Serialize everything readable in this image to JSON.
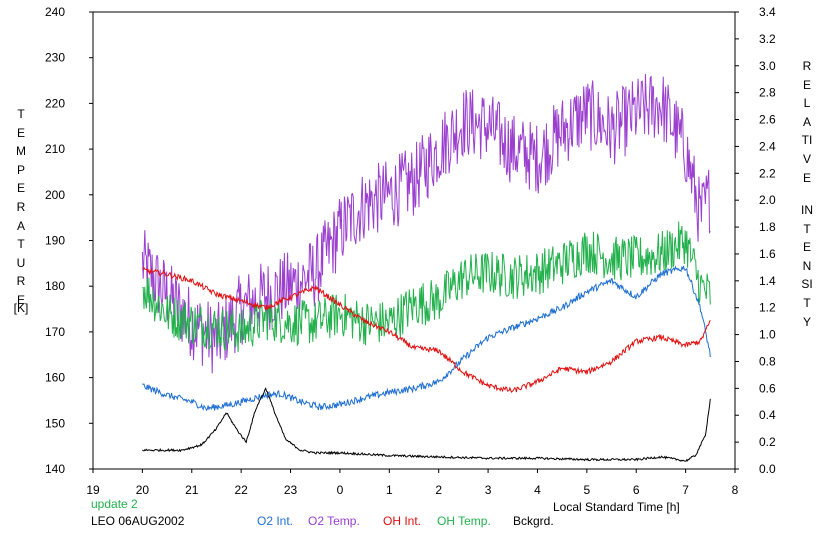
{
  "chart_data": {
    "type": "line",
    "xlabel": "Local Standard Time [h]",
    "x_tick_labels": [
      "19",
      "20",
      "21",
      "22",
      "23",
      "0",
      "1",
      "2",
      "3",
      "4",
      "5",
      "6",
      "7",
      "8"
    ],
    "y_left_label": "TEMPERATURE",
    "y_left_unit": "[K]",
    "y_left_ticks": [
      140,
      150,
      160,
      170,
      180,
      190,
      200,
      210,
      220,
      230,
      240
    ],
    "ylim_left": [
      140,
      240
    ],
    "y_right_label": "RELATIVE INTENSITY",
    "y_right_ticks": [
      "0.0",
      "0.2",
      "0.4",
      "0.6",
      "0.8",
      "1.0",
      "1.2",
      "1.4",
      "1.6",
      "1.8",
      "2.0",
      "2.2",
      "2.4",
      "2.6",
      "2.8",
      "3.0",
      "3.2",
      "3.4"
    ],
    "ylim_right": [
      0,
      3.4
    ],
    "xlim": [
      19,
      32
    ],
    "grid": false,
    "legend_placement": "bottom",
    "series": [
      {
        "name": "O2 Int.",
        "color": "#1f6fd1",
        "axis": "right",
        "noise": 0.025,
        "x": [
          20.0,
          20.5,
          21.0,
          21.3,
          21.8,
          22.2,
          22.5,
          22.8,
          23.2,
          23.6,
          24.0,
          24.5,
          25.0,
          25.5,
          26.0,
          26.5,
          27.0,
          27.5,
          28.0,
          28.5,
          29.0,
          29.5,
          30.0,
          30.5,
          31.0,
          31.3,
          31.5
        ],
        "y": [
          0.62,
          0.55,
          0.5,
          0.45,
          0.48,
          0.52,
          0.55,
          0.56,
          0.5,
          0.46,
          0.48,
          0.53,
          0.57,
          0.6,
          0.65,
          0.82,
          0.98,
          1.05,
          1.12,
          1.2,
          1.32,
          1.4,
          1.28,
          1.45,
          1.5,
          1.2,
          0.85
        ]
      },
      {
        "name": "O2 Temp.",
        "color": "#9b3fcf",
        "axis": "left",
        "noise": 8,
        "x": [
          20.0,
          20.5,
          21.0,
          21.5,
          22.0,
          22.5,
          23.0,
          23.5,
          24.0,
          24.5,
          25.0,
          25.5,
          26.0,
          26.5,
          27.0,
          27.5,
          28.0,
          28.5,
          29.0,
          29.5,
          30.0,
          30.5,
          31.0,
          31.3,
          31.5
        ],
        "y": [
          185,
          178,
          172,
          168,
          175,
          178,
          180,
          183,
          192,
          198,
          200,
          203,
          210,
          216,
          215,
          210,
          208,
          214,
          218,
          214,
          218,
          220,
          210,
          195,
          200
        ]
      },
      {
        "name": "OH Int.",
        "color": "#e01010",
        "axis": "right",
        "noise": 0.02,
        "x": [
          20.0,
          20.5,
          21.0,
          21.5,
          22.0,
          22.5,
          23.0,
          23.5,
          24.0,
          24.5,
          25.0,
          25.5,
          26.0,
          26.5,
          27.0,
          27.5,
          28.0,
          28.5,
          29.0,
          29.5,
          30.0,
          30.5,
          31.0,
          31.3,
          31.5
        ],
        "y": [
          1.48,
          1.45,
          1.4,
          1.3,
          1.25,
          1.2,
          1.28,
          1.35,
          1.22,
          1.1,
          1.02,
          0.9,
          0.88,
          0.72,
          0.62,
          0.58,
          0.65,
          0.75,
          0.72,
          0.8,
          0.95,
          0.98,
          0.92,
          0.95,
          1.1
        ]
      },
      {
        "name": "OH Temp.",
        "color": "#22b14c",
        "axis": "left",
        "noise": 5,
        "x": [
          20.0,
          20.5,
          21.0,
          21.5,
          22.0,
          22.5,
          23.0,
          23.5,
          24.0,
          24.5,
          25.0,
          25.5,
          26.0,
          26.5,
          27.0,
          27.5,
          28.0,
          28.5,
          29.0,
          29.5,
          30.0,
          30.5,
          31.0,
          31.3,
          31.5
        ],
        "y": [
          180,
          174,
          172,
          171,
          170,
          173,
          172,
          172,
          174,
          172,
          172,
          176,
          177,
          182,
          183,
          182,
          183,
          185,
          188,
          186,
          186,
          187,
          190,
          180,
          178
        ]
      },
      {
        "name": "Bckgrd.",
        "color": "#000000",
        "axis": "right",
        "noise": 0.008,
        "x": [
          20.0,
          20.8,
          21.2,
          21.5,
          21.7,
          21.9,
          22.1,
          22.3,
          22.5,
          22.7,
          22.9,
          23.2,
          23.5,
          24.0,
          25.0,
          26.0,
          27.0,
          28.0,
          29.0,
          30.0,
          30.5,
          31.0,
          31.2,
          31.4,
          31.5
        ],
        "y": [
          0.14,
          0.14,
          0.18,
          0.3,
          0.42,
          0.3,
          0.2,
          0.45,
          0.6,
          0.4,
          0.22,
          0.14,
          0.12,
          0.12,
          0.1,
          0.09,
          0.08,
          0.08,
          0.07,
          0.07,
          0.09,
          0.06,
          0.1,
          0.25,
          0.52
        ]
      }
    ]
  },
  "footer": {
    "update": "update 2",
    "station": "LEO 06AUG2002"
  }
}
